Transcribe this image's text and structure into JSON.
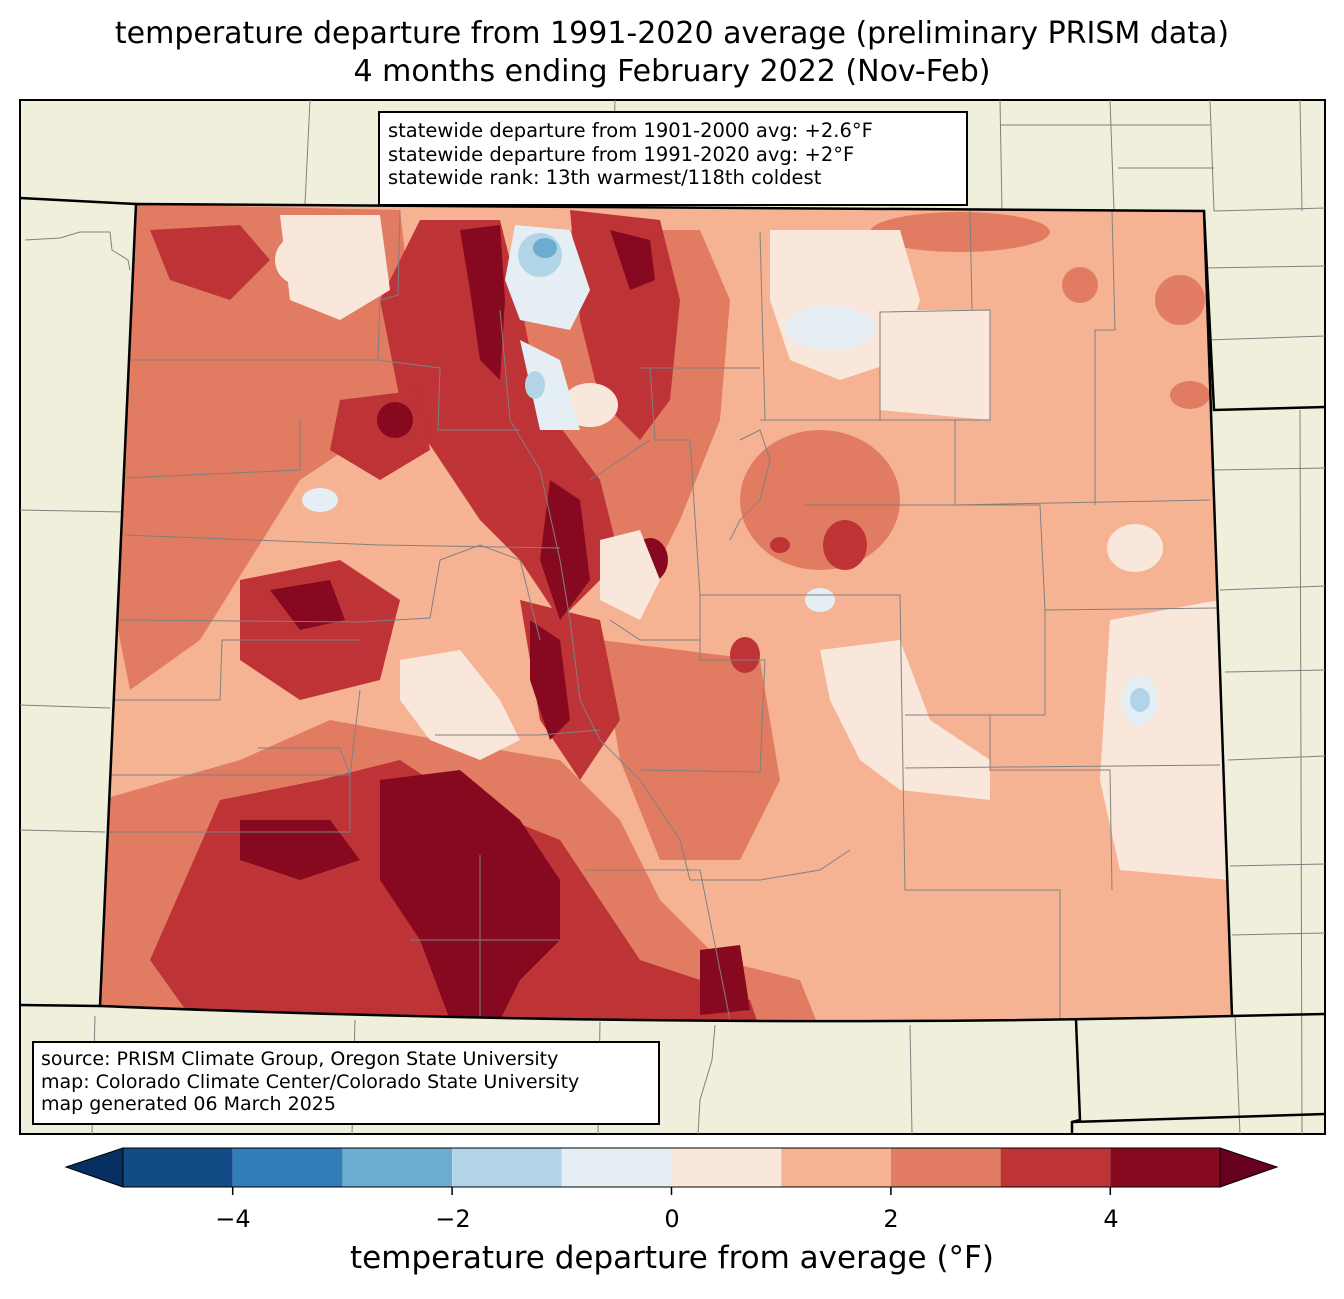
{
  "title": {
    "line1": "temperature departure from 1991-2020 average (preliminary PRISM data)",
    "line2": "4 months ending February 2022 (Nov-Feb)"
  },
  "stats": {
    "line1": "statewide departure from 1901-2000 avg: +2.6°F",
    "line2": "statewide departure from 1991-2020 avg: +2°F",
    "line3": "statewide rank: 13th warmest/118th coldest"
  },
  "source": {
    "line1": "source: PRISM Climate Group, Oregon State University",
    "line2": "map: Colorado Climate Center/Colorado State University",
    "line3": "map generated 06 March 2025"
  },
  "colorbar": {
    "label": "temperature departure from average (°F)",
    "ticks": [
      "−4",
      "−2",
      "0",
      "2",
      "4"
    ],
    "levels": [
      -5,
      -4,
      -3,
      -2,
      -1,
      0,
      1,
      2,
      3,
      4,
      5
    ],
    "colors": [
      "#134b87",
      "#327db7",
      "#6bacd0",
      "#b1d5e7",
      "#e4eef4",
      "#fae7dc",
      "#f6b394",
      "#e17c62",
      "#bd3336",
      "#87091f"
    ],
    "under_color": "#053061",
    "over_color": "#67001f"
  },
  "map": {
    "land_color": "#efefdb",
    "border_color": "#808080"
  }
}
